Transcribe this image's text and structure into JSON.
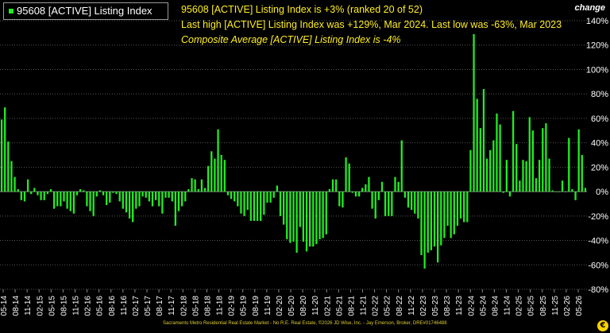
{
  "legend": {
    "label": "95608 [ACTIVE] Listing Index",
    "swatch_color": "#22ee22"
  },
  "annotations": {
    "line1": "95608 [ACTIVE] Listing Index is +3% (ranked 20 of 52)",
    "line2": "Last high [ACTIVE] Listing Index was +129%, Mar 2024. Last low was -63%, Mar 2023",
    "line3": "Composite Average [ACTIVE] Listing Index is -4%"
  },
  "change_label": "change",
  "credit": "Sacramento Metro Residential Real Estate Market - No R.E. Real Estate, ©2026 JD Wise, Inc. - Jay Emerson, Broker, DRE#01746488",
  "chart_data": {
    "type": "bar",
    "bar_color": "#22ee22",
    "ylim": [
      -80,
      140
    ],
    "yticks": [
      -80,
      -60,
      -40,
      -20,
      0,
      20,
      40,
      60,
      80,
      100,
      120,
      140
    ],
    "ytick_labels": [
      "-80%",
      "-60%",
      "-40%",
      "-20%",
      "0%",
      "20%",
      "40%",
      "60%",
      "80%",
      "100%",
      "120%",
      "140%"
    ],
    "xtick_labels": [
      "05-14",
      "08-14",
      "11-14",
      "02-15",
      "05-15",
      "08-15",
      "11-15",
      "02-16",
      "05-16",
      "08-16",
      "11-16",
      "02-17",
      "05-17",
      "08-17",
      "11-17",
      "02-18",
      "05-18",
      "08-18",
      "11-18",
      "02-19",
      "05-19",
      "08-19",
      "11-19",
      "02-20",
      "05-20",
      "08-20",
      "11-20",
      "02-21",
      "05-21",
      "08-21",
      "11-21",
      "02-22",
      "05-22",
      "08-22",
      "11-22",
      "02-23",
      "05-23",
      "08-23",
      "11-23",
      "02-24",
      "05-24",
      "08-24",
      "11-24",
      "02-25",
      "05-25",
      "08-25",
      "11-25",
      "02-26",
      "05-26"
    ],
    "values": [
      59,
      69,
      41,
      25,
      12,
      2,
      -7,
      -8,
      10,
      -2,
      3,
      -3,
      -7,
      -7,
      -2,
      2,
      -14,
      -12,
      -12,
      -8,
      -14,
      -16,
      -18,
      -3,
      2,
      1,
      -12,
      -16,
      -20,
      -4,
      1,
      -3,
      -11,
      -9,
      -1,
      -2,
      -8,
      -14,
      -17,
      -22,
      -25,
      -14,
      -12,
      -4,
      -5,
      -8,
      -12,
      -7,
      -12,
      -18,
      -5,
      -5,
      -8,
      -28,
      -16,
      -12,
      -8,
      2,
      11,
      10,
      2,
      10,
      3,
      21,
      33,
      27,
      51,
      30,
      26,
      -3,
      -6,
      -8,
      -12,
      -18,
      -20,
      -15,
      -24,
      -24,
      -24,
      -24,
      -19,
      -9,
      -9,
      -5,
      5,
      -20,
      -27,
      -39,
      -42,
      -41,
      -50,
      -29,
      -41,
      -49,
      -45,
      -45,
      -43,
      -39,
      -38,
      -35,
      2,
      10,
      10,
      -12,
      -13,
      28,
      23,
      -1,
      -4,
      -4,
      3,
      6,
      12,
      -14,
      -22,
      -7,
      8,
      -20,
      -20,
      -20,
      12,
      8,
      42,
      -5,
      -13,
      -15,
      -18,
      -22,
      -52,
      -63,
      -50,
      -48,
      -45,
      -58,
      -44,
      -38,
      -28,
      -38,
      -35,
      -28,
      -22,
      -25,
      -25,
      34,
      129,
      76,
      52,
      84,
      27,
      34,
      42,
      64,
      55,
      -1,
      26,
      -4,
      66,
      39,
      9,
      26,
      25,
      61,
      50,
      11,
      26,
      52,
      56,
      27,
      1,
      0,
      0,
      9,
      0,
      44,
      2,
      -7,
      51,
      30,
      3
    ]
  }
}
